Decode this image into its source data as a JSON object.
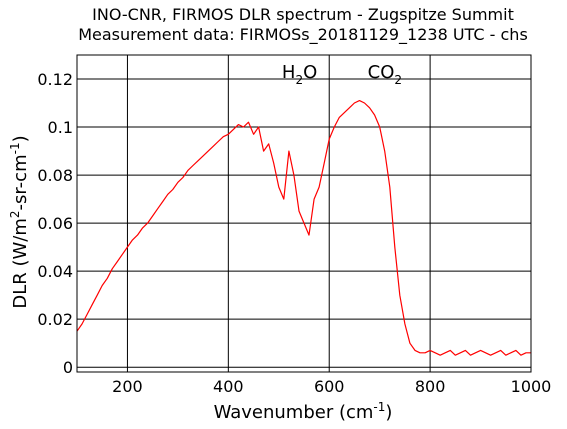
{
  "chart_data": {
    "type": "line",
    "title": "INO-CNR, FIRMOS DLR spectrum - Zugspitze Summit",
    "subtitle": "Measurement data: FIRMOSs_20181129_1238 UTC - chs",
    "xlabel": {
      "text": "Wavenumber (cm",
      "sup": "-1",
      "tail": ")"
    },
    "ylabel": {
      "p1": "DLR (W/m",
      "sup1": "2",
      "p2": "-sr-cm",
      "sup2": "-1",
      "p3": ")"
    },
    "xlim": [
      100,
      1000
    ],
    "ylim": [
      -0.002,
      0.13
    ],
    "xticks": [
      200,
      400,
      600,
      800,
      1000
    ],
    "xtick_labels": [
      "200",
      "400",
      "600",
      "800",
      "1000"
    ],
    "yticks": [
      0,
      0.02,
      0.04,
      0.06,
      0.08,
      0.1,
      0.12
    ],
    "ytick_labels": [
      "0",
      "0.02",
      "0.04",
      "0.06",
      "0.08",
      "0.1",
      "0.12"
    ],
    "grid": true,
    "line_color": "#ff0000",
    "annotations": [
      {
        "main": "H",
        "sub": "2",
        "tail": "O",
        "x": 530
      },
      {
        "main": "CO",
        "sub": "2",
        "tail": "",
        "x": 700
      }
    ],
    "series": [
      {
        "x": [
          100,
          110,
          120,
          130,
          140,
          150,
          160,
          170,
          180,
          190,
          200,
          210,
          220,
          230,
          240,
          250,
          260,
          270,
          280,
          290,
          300,
          310,
          320,
          330,
          340,
          350,
          360,
          370,
          380,
          390,
          400,
          410,
          420,
          430,
          440,
          450,
          460,
          470,
          480,
          490,
          500,
          510,
          520,
          530,
          540,
          550,
          560,
          570,
          580,
          590,
          600,
          610,
          620,
          630,
          640,
          650,
          660,
          670,
          680,
          690,
          700,
          710,
          720,
          730,
          740,
          750,
          760,
          770,
          780,
          790,
          800,
          810,
          820,
          830,
          840,
          850,
          860,
          870,
          880,
          890,
          900,
          910,
          920,
          930,
          940,
          950,
          960,
          970,
          980,
          990,
          1000
        ],
        "y": [
          0.015,
          0.018,
          0.022,
          0.026,
          0.03,
          0.034,
          0.037,
          0.041,
          0.044,
          0.047,
          0.05,
          0.053,
          0.055,
          0.058,
          0.06,
          0.063,
          0.066,
          0.069,
          0.072,
          0.074,
          0.077,
          0.079,
          0.082,
          0.084,
          0.086,
          0.088,
          0.09,
          0.092,
          0.094,
          0.096,
          0.097,
          0.099,
          0.101,
          0.1,
          0.102,
          0.097,
          0.1,
          0.09,
          0.093,
          0.085,
          0.075,
          0.07,
          0.09,
          0.08,
          0.065,
          0.06,
          0.055,
          0.07,
          0.075,
          0.085,
          0.095,
          0.1,
          0.104,
          0.106,
          0.108,
          0.11,
          0.111,
          0.11,
          0.108,
          0.105,
          0.1,
          0.09,
          0.075,
          0.05,
          0.03,
          0.018,
          0.01,
          0.007,
          0.006,
          0.006,
          0.007,
          0.006,
          0.005,
          0.006,
          0.007,
          0.005,
          0.006,
          0.007,
          0.005,
          0.006,
          0.007,
          0.006,
          0.005,
          0.006,
          0.007,
          0.005,
          0.006,
          0.007,
          0.005,
          0.006,
          0.006
        ]
      }
    ]
  }
}
